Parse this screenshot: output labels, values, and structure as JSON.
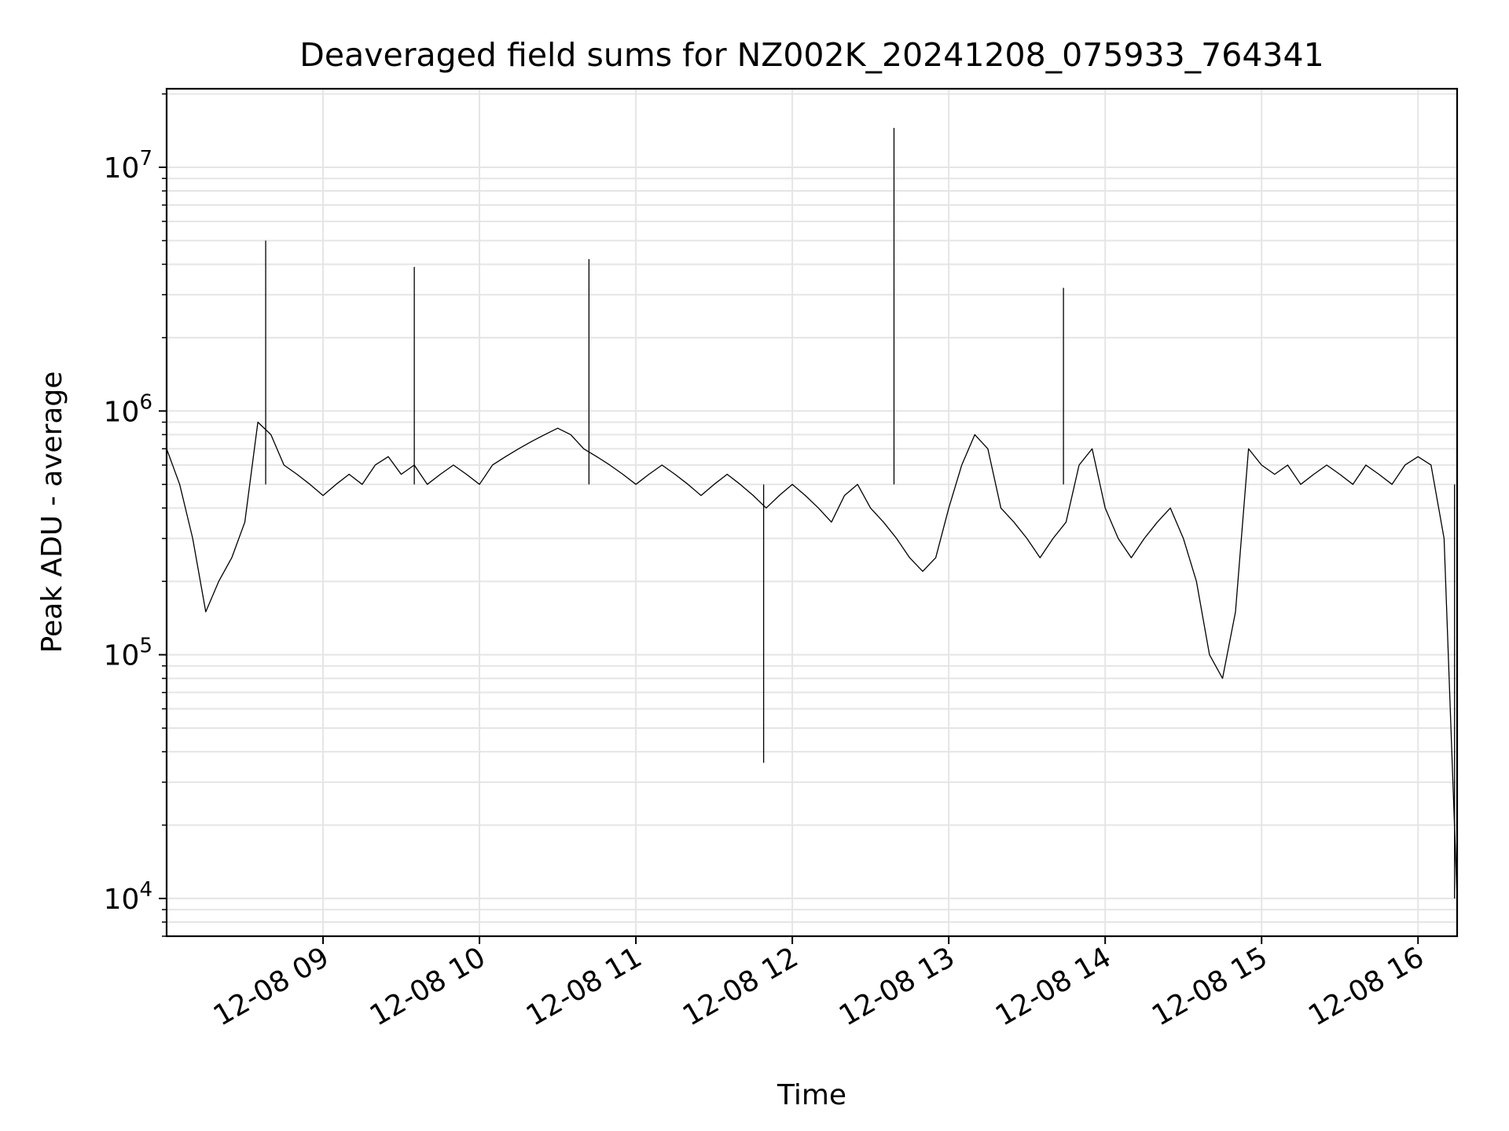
{
  "chart_data": {
    "type": "line",
    "title": "Deaveraged field sums for NZ002K_20241208_075933_764341",
    "xlabel": "Time",
    "ylabel": "Peak ADU - average",
    "yscale": "log",
    "ylim": [
      7000,
      21000000
    ],
    "xlim": [
      "2024-12-08 08:00",
      "2024-12-08 16:15"
    ],
    "grid": true,
    "line_color": "#000000",
    "grid_color": "#e5e5e5",
    "x_ticks": [
      {
        "value": "2024-12-08 09:00",
        "label": "12-08 09"
      },
      {
        "value": "2024-12-08 10:00",
        "label": "12-08 10"
      },
      {
        "value": "2024-12-08 11:00",
        "label": "12-08 11"
      },
      {
        "value": "2024-12-08 12:00",
        "label": "12-08 12"
      },
      {
        "value": "2024-12-08 13:00",
        "label": "12-08 13"
      },
      {
        "value": "2024-12-08 14:00",
        "label": "12-08 14"
      },
      {
        "value": "2024-12-08 15:00",
        "label": "12-08 15"
      },
      {
        "value": "2024-12-08 16:00",
        "label": "12-08 16"
      }
    ],
    "y_ticks": [
      {
        "value": 10000,
        "base": "10",
        "exp": "4"
      },
      {
        "value": 100000,
        "base": "10",
        "exp": "5"
      },
      {
        "value": 1000000,
        "base": "10",
        "exp": "6"
      },
      {
        "value": 10000000,
        "base": "10",
        "exp": "7"
      }
    ],
    "series": [
      {
        "x": [
          "2024-12-08 08:00",
          "2024-12-08 08:05",
          "2024-12-08 08:10",
          "2024-12-08 08:15",
          "2024-12-08 08:20",
          "2024-12-08 08:25",
          "2024-12-08 08:30",
          "2024-12-08 08:35",
          "2024-12-08 08:40",
          "2024-12-08 08:45",
          "2024-12-08 08:50",
          "2024-12-08 08:55",
          "2024-12-08 09:00",
          "2024-12-08 09:05",
          "2024-12-08 09:10",
          "2024-12-08 09:15",
          "2024-12-08 09:20",
          "2024-12-08 09:25",
          "2024-12-08 09:30",
          "2024-12-08 09:35",
          "2024-12-08 09:40",
          "2024-12-08 09:45",
          "2024-12-08 09:50",
          "2024-12-08 09:55",
          "2024-12-08 10:00",
          "2024-12-08 10:05",
          "2024-12-08 10:10",
          "2024-12-08 10:15",
          "2024-12-08 10:20",
          "2024-12-08 10:25",
          "2024-12-08 10:30",
          "2024-12-08 10:35",
          "2024-12-08 10:40",
          "2024-12-08 10:45",
          "2024-12-08 10:50",
          "2024-12-08 10:55",
          "2024-12-08 11:00",
          "2024-12-08 11:05",
          "2024-12-08 11:10",
          "2024-12-08 11:15",
          "2024-12-08 11:20",
          "2024-12-08 11:25",
          "2024-12-08 11:30",
          "2024-12-08 11:35",
          "2024-12-08 11:40",
          "2024-12-08 11:45",
          "2024-12-08 11:50",
          "2024-12-08 11:55",
          "2024-12-08 12:00",
          "2024-12-08 12:05",
          "2024-12-08 12:10",
          "2024-12-08 12:15",
          "2024-12-08 12:20",
          "2024-12-08 12:25",
          "2024-12-08 12:30",
          "2024-12-08 12:35",
          "2024-12-08 12:40",
          "2024-12-08 12:45",
          "2024-12-08 12:50",
          "2024-12-08 12:55",
          "2024-12-08 13:00",
          "2024-12-08 13:05",
          "2024-12-08 13:10",
          "2024-12-08 13:15",
          "2024-12-08 13:20",
          "2024-12-08 13:25",
          "2024-12-08 13:30",
          "2024-12-08 13:35",
          "2024-12-08 13:40",
          "2024-12-08 13:45",
          "2024-12-08 13:50",
          "2024-12-08 13:55",
          "2024-12-08 14:00",
          "2024-12-08 14:05",
          "2024-12-08 14:10",
          "2024-12-08 14:15",
          "2024-12-08 14:20",
          "2024-12-08 14:25",
          "2024-12-08 14:30",
          "2024-12-08 14:35",
          "2024-12-08 14:40",
          "2024-12-08 14:45",
          "2024-12-08 14:50",
          "2024-12-08 14:55",
          "2024-12-08 15:00",
          "2024-12-08 15:05",
          "2024-12-08 15:10",
          "2024-12-08 15:15",
          "2024-12-08 15:20",
          "2024-12-08 15:25",
          "2024-12-08 15:30",
          "2024-12-08 15:35",
          "2024-12-08 15:40",
          "2024-12-08 15:45",
          "2024-12-08 15:50",
          "2024-12-08 15:55",
          "2024-12-08 16:00",
          "2024-12-08 16:05",
          "2024-12-08 16:10",
          "2024-12-08 16:15"
        ],
        "y": [
          700000,
          500000,
          300000,
          150000,
          200000,
          250000,
          350000,
          900000,
          800000,
          600000,
          550000,
          500000,
          450000,
          500000,
          550000,
          500000,
          600000,
          650000,
          550000,
          600000,
          500000,
          550000,
          600000,
          550000,
          500000,
          600000,
          650000,
          700000,
          750000,
          800000,
          850000,
          800000,
          700000,
          650000,
          600000,
          550000,
          500000,
          550000,
          600000,
          550000,
          500000,
          450000,
          500000,
          550000,
          500000,
          450000,
          400000,
          450000,
          500000,
          450000,
          400000,
          350000,
          450000,
          500000,
          400000,
          350000,
          300000,
          250000,
          220000,
          250000,
          400000,
          600000,
          800000,
          700000,
          400000,
          350000,
          300000,
          250000,
          300000,
          350000,
          600000,
          700000,
          400000,
          300000,
          250000,
          300000,
          350000,
          400000,
          300000,
          200000,
          100000,
          80000,
          150000,
          700000,
          600000,
          550000,
          600000,
          500000,
          550000,
          600000,
          550000,
          500000,
          600000,
          550000,
          500000,
          600000,
          650000,
          600000,
          300000,
          10000
        ]
      }
    ],
    "highlights": [
      {
        "x": "2024-12-08 08:38",
        "y": 5000000
      },
      {
        "x": "2024-12-08 09:35",
        "y": 3900000
      },
      {
        "x": "2024-12-08 10:42",
        "y": 4200000
      },
      {
        "x": "2024-12-08 12:39",
        "y": 14500000
      },
      {
        "x": "2024-12-08 11:49",
        "y": 36000
      },
      {
        "x": "2024-12-08 13:44",
        "y": 3200000
      },
      {
        "x": "2024-12-08 16:14",
        "y": 10000
      }
    ]
  }
}
